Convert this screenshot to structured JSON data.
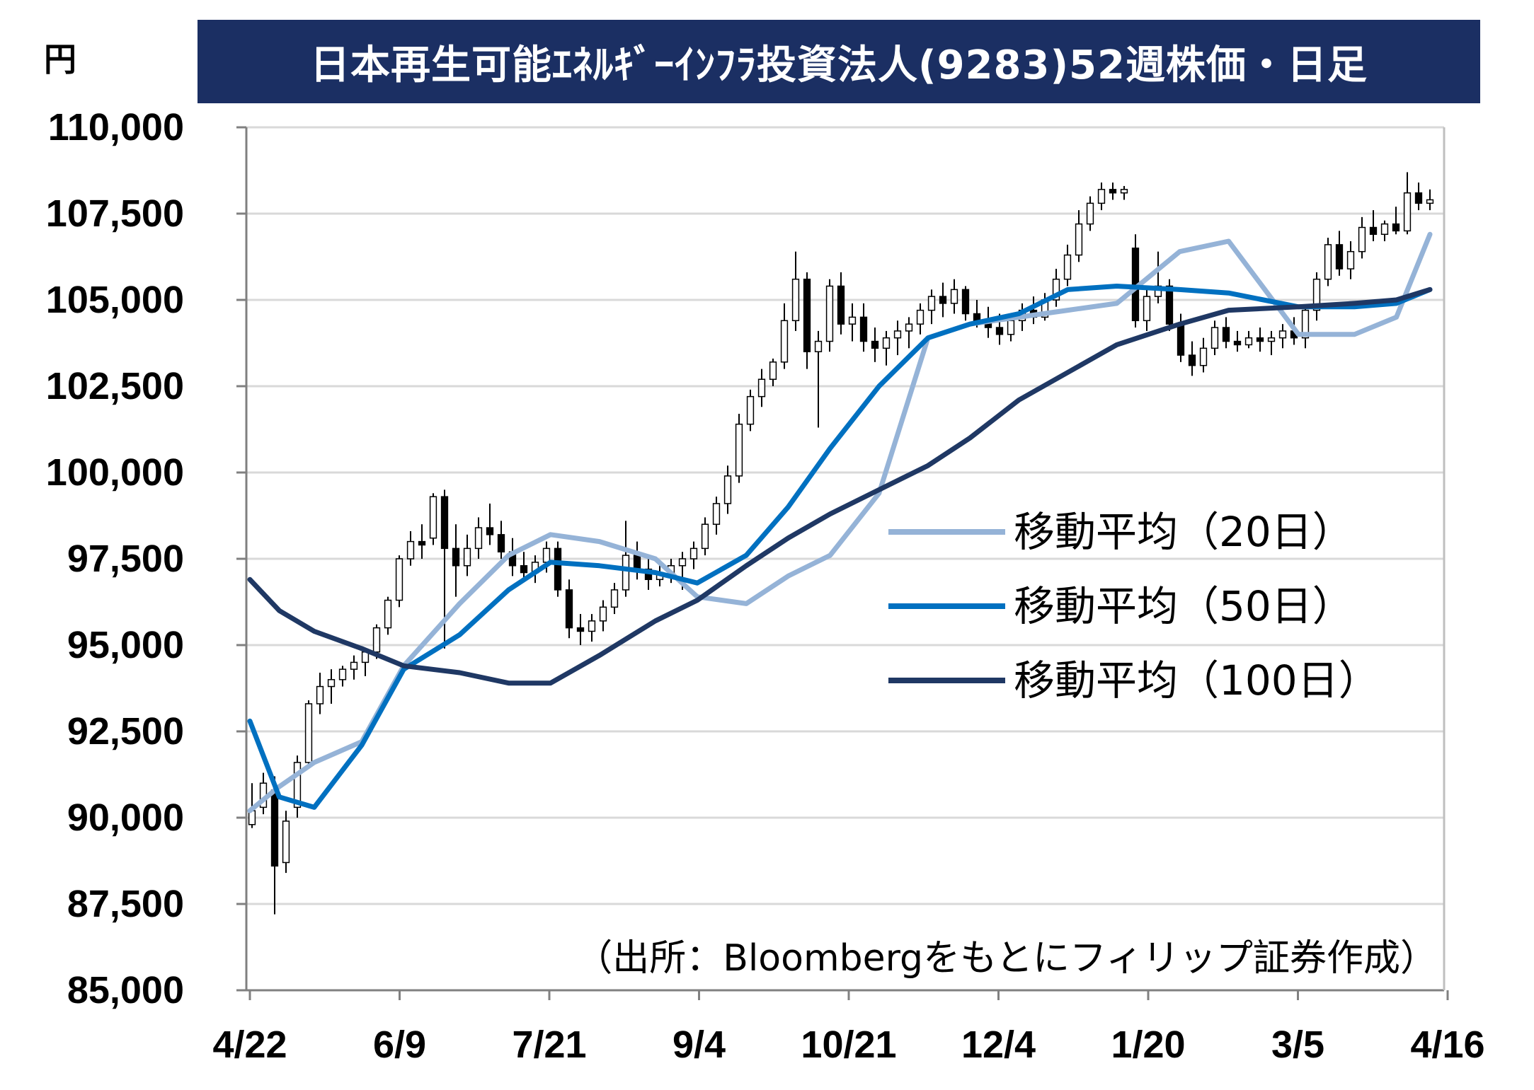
{
  "chart_data": {
    "type": "candlestick",
    "title": "日本再生可能ｴﾈﾙｷﾞｰｲﾝﾌﾗ投資法人(9283)52週株価・日足",
    "ylabel": "円",
    "ylim": [
      85000,
      110000
    ],
    "yticks": [
      "110,000",
      "107,500",
      "105,000",
      "102,500",
      "100,000",
      "97,500",
      "95,000",
      "92,500",
      "90,000",
      "87,500",
      "85,000"
    ],
    "ytick_values": [
      110000,
      107500,
      105000,
      102500,
      100000,
      97500,
      95000,
      92500,
      90000,
      87500,
      85000
    ],
    "xticks": [
      "4/22",
      "6/9",
      "7/21",
      "9/4",
      "10/21",
      "12/4",
      "1/20",
      "3/5",
      "4/16"
    ],
    "grid": true,
    "source": "（出所：Bloombergをもとにフィリップ証券作成）",
    "series": [
      {
        "name": "移動平均（20日）",
        "color": "#95b3d7",
        "values": [
          90200,
          90900,
          91600,
          92200,
          94400,
          96200,
          97600,
          98200,
          98000,
          97500,
          96400,
          96200,
          97000,
          97600,
          99400,
          103900,
          104300,
          104500,
          104700,
          104900,
          106400,
          106700,
          104000,
          104000,
          104500,
          106900
        ]
      },
      {
        "name": "移動平均（50日）",
        "color": "#0070c0",
        "values": [
          92800,
          90600,
          90300,
          92100,
          94300,
          95300,
          96600,
          97400,
          97300,
          97100,
          96800,
          97600,
          99000,
          100700,
          102500,
          103900,
          104300,
          104600,
          105300,
          105400,
          105300,
          105200,
          104800,
          104800,
          104900,
          105300
        ]
      },
      {
        "name": "移動平均（100日）",
        "color": "#1f3864",
        "values": [
          96900,
          96000,
          95400,
          94900,
          94400,
          94200,
          93900,
          93900,
          94700,
          95700,
          96300,
          97300,
          98100,
          98800,
          99500,
          100200,
          101000,
          102100,
          102900,
          103700,
          104300,
          104700,
          104800,
          104900,
          105000,
          105300
        ]
      }
    ],
    "ma_x": [
      0,
      0.42,
      0.92,
      1.6,
      2.2,
      3.0,
      3.7,
      4.3,
      5.0,
      5.8,
      6.4,
      7.1,
      7.7,
      8.3,
      9.0,
      9.7,
      10.3,
      11.0,
      11.7,
      12.4,
      13.3,
      14.0,
      15.0,
      15.8,
      16.4,
      16.88
    ],
    "candles": [
      {
        "o": 89800,
        "h": 91000,
        "l": 89700,
        "c": 90200
      },
      {
        "o": 90300,
        "h": 91300,
        "l": 90100,
        "c": 91000
      },
      {
        "o": 90800,
        "h": 91200,
        "l": 87200,
        "c": 88600
      },
      {
        "o": 88700,
        "h": 90200,
        "l": 88400,
        "c": 89900
      },
      {
        "o": 90300,
        "h": 91800,
        "l": 90000,
        "c": 91600
      },
      {
        "o": 91600,
        "h": 93400,
        "l": 91500,
        "c": 93300
      },
      {
        "o": 93300,
        "h": 94200,
        "l": 93000,
        "c": 93800
      },
      {
        "o": 93800,
        "h": 94300,
        "l": 93300,
        "c": 94000
      },
      {
        "o": 94000,
        "h": 94400,
        "l": 93800,
        "c": 94300
      },
      {
        "o": 94300,
        "h": 94700,
        "l": 94000,
        "c": 94500
      },
      {
        "o": 94500,
        "h": 94900,
        "l": 94100,
        "c": 94800
      },
      {
        "o": 94800,
        "h": 95600,
        "l": 94600,
        "c": 95500
      },
      {
        "o": 95500,
        "h": 96400,
        "l": 95300,
        "c": 96300
      },
      {
        "o": 96300,
        "h": 97600,
        "l": 96100,
        "c": 97500
      },
      {
        "o": 97500,
        "h": 98300,
        "l": 97300,
        "c": 98000
      },
      {
        "o": 98000,
        "h": 98500,
        "l": 97500,
        "c": 97900
      },
      {
        "o": 98100,
        "h": 99400,
        "l": 97900,
        "c": 99300
      },
      {
        "o": 99300,
        "h": 99500,
        "l": 94900,
        "c": 97800
      },
      {
        "o": 97800,
        "h": 98500,
        "l": 96400,
        "c": 97300
      },
      {
        "o": 97300,
        "h": 98200,
        "l": 97000,
        "c": 97800
      },
      {
        "o": 97800,
        "h": 98700,
        "l": 97500,
        "c": 98400
      },
      {
        "o": 98400,
        "h": 99100,
        "l": 97900,
        "c": 98200
      },
      {
        "o": 98200,
        "h": 98600,
        "l": 97500,
        "c": 97700
      },
      {
        "o": 97700,
        "h": 98100,
        "l": 97000,
        "c": 97300
      },
      {
        "o": 97300,
        "h": 97700,
        "l": 96900,
        "c": 97100
      },
      {
        "o": 97100,
        "h": 97600,
        "l": 96800,
        "c": 97400
      },
      {
        "o": 97400,
        "h": 98000,
        "l": 97100,
        "c": 97800
      },
      {
        "o": 97800,
        "h": 98000,
        "l": 96400,
        "c": 96600
      },
      {
        "o": 96600,
        "h": 96900,
        "l": 95200,
        "c": 95500
      },
      {
        "o": 95500,
        "h": 95900,
        "l": 95000,
        "c": 95400
      },
      {
        "o": 95400,
        "h": 95900,
        "l": 95100,
        "c": 95700
      },
      {
        "o": 95700,
        "h": 96300,
        "l": 95400,
        "c": 96100
      },
      {
        "o": 96100,
        "h": 96800,
        "l": 95900,
        "c": 96600
      },
      {
        "o": 96600,
        "h": 98600,
        "l": 96400,
        "c": 97600
      },
      {
        "o": 97600,
        "h": 98000,
        "l": 96900,
        "c": 97200
      },
      {
        "o": 97200,
        "h": 97500,
        "l": 96600,
        "c": 96900
      },
      {
        "o": 96900,
        "h": 97400,
        "l": 96700,
        "c": 97100
      },
      {
        "o": 97100,
        "h": 97500,
        "l": 96800,
        "c": 97300
      },
      {
        "o": 97300,
        "h": 97700,
        "l": 96600,
        "c": 97500
      },
      {
        "o": 97500,
        "h": 98000,
        "l": 97200,
        "c": 97800
      },
      {
        "o": 97800,
        "h": 98700,
        "l": 97600,
        "c": 98500
      },
      {
        "o": 98500,
        "h": 99300,
        "l": 98200,
        "c": 99100
      },
      {
        "o": 99100,
        "h": 100200,
        "l": 98800,
        "c": 99900
      },
      {
        "o": 99900,
        "h": 101700,
        "l": 99700,
        "c": 101400
      },
      {
        "o": 101400,
        "h": 102400,
        "l": 101200,
        "c": 102200
      },
      {
        "o": 102200,
        "h": 103000,
        "l": 101900,
        "c": 102700
      },
      {
        "o": 102700,
        "h": 103300,
        "l": 102500,
        "c": 103200
      },
      {
        "o": 103200,
        "h": 104900,
        "l": 103000,
        "c": 104400
      },
      {
        "o": 104400,
        "h": 106400,
        "l": 104100,
        "c": 105600
      },
      {
        "o": 105600,
        "h": 105800,
        "l": 103000,
        "c": 103500
      },
      {
        "o": 103500,
        "h": 104100,
        "l": 101300,
        "c": 103800
      },
      {
        "o": 103800,
        "h": 105600,
        "l": 103500,
        "c": 105400
      },
      {
        "o": 105400,
        "h": 105800,
        "l": 104000,
        "c": 104300
      },
      {
        "o": 104300,
        "h": 104900,
        "l": 103800,
        "c": 104500
      },
      {
        "o": 104500,
        "h": 104900,
        "l": 103500,
        "c": 103800
      },
      {
        "o": 103800,
        "h": 104200,
        "l": 103200,
        "c": 103600
      },
      {
        "o": 103600,
        "h": 104100,
        "l": 103100,
        "c": 103900
      },
      {
        "o": 103900,
        "h": 104400,
        "l": 103400,
        "c": 104100
      },
      {
        "o": 104100,
        "h": 104500,
        "l": 103600,
        "c": 104300
      },
      {
        "o": 104300,
        "h": 104900,
        "l": 104000,
        "c": 104700
      },
      {
        "o": 104700,
        "h": 105300,
        "l": 104300,
        "c": 105100
      },
      {
        "o": 105100,
        "h": 105500,
        "l": 104500,
        "c": 104900
      },
      {
        "o": 104900,
        "h": 105600,
        "l": 104600,
        "c": 105300
      },
      {
        "o": 105300,
        "h": 105400,
        "l": 104400,
        "c": 104600
      },
      {
        "o": 104600,
        "h": 105000,
        "l": 104200,
        "c": 104400
      },
      {
        "o": 104400,
        "h": 104800,
        "l": 103900,
        "c": 104200
      },
      {
        "o": 104200,
        "h": 104600,
        "l": 103700,
        "c": 104000
      },
      {
        "o": 104000,
        "h": 104600,
        "l": 103800,
        "c": 104400
      },
      {
        "o": 104400,
        "h": 104900,
        "l": 104100,
        "c": 104700
      },
      {
        "o": 104700,
        "h": 105100,
        "l": 104300,
        "c": 104500
      },
      {
        "o": 104500,
        "h": 105200,
        "l": 104400,
        "c": 105000
      },
      {
        "o": 105000,
        "h": 105900,
        "l": 104800,
        "c": 105600
      },
      {
        "o": 105600,
        "h": 106600,
        "l": 105400,
        "c": 106300
      },
      {
        "o": 106300,
        "h": 107600,
        "l": 106100,
        "c": 107200
      },
      {
        "o": 107200,
        "h": 108000,
        "l": 107000,
        "c": 107800
      },
      {
        "o": 107800,
        "h": 108400,
        "l": 107600,
        "c": 108200
      },
      {
        "o": 108200,
        "h": 108400,
        "l": 107900,
        "c": 108100
      },
      {
        "o": 108100,
        "h": 108300,
        "l": 107900,
        "c": 108200
      },
      {
        "o": 106500,
        "h": 106900,
        "l": 104200,
        "c": 104400
      },
      {
        "o": 104400,
        "h": 105300,
        "l": 104100,
        "c": 105100
      },
      {
        "o": 105100,
        "h": 106400,
        "l": 104900,
        "c": 105400
      },
      {
        "o": 105400,
        "h": 105600,
        "l": 104100,
        "c": 104300
      },
      {
        "o": 104300,
        "h": 104600,
        "l": 103200,
        "c": 103400
      },
      {
        "o": 103400,
        "h": 103800,
        "l": 102800,
        "c": 103100
      },
      {
        "o": 103100,
        "h": 103900,
        "l": 102900,
        "c": 103600
      },
      {
        "o": 103600,
        "h": 104400,
        "l": 103400,
        "c": 104200
      },
      {
        "o": 104200,
        "h": 104500,
        "l": 103600,
        "c": 103800
      },
      {
        "o": 103800,
        "h": 104100,
        "l": 103500,
        "c": 103700
      },
      {
        "o": 103700,
        "h": 104100,
        "l": 103600,
        "c": 103900
      },
      {
        "o": 103900,
        "h": 104200,
        "l": 103500,
        "c": 103800
      },
      {
        "o": 103800,
        "h": 104100,
        "l": 103400,
        "c": 103900
      },
      {
        "o": 103900,
        "h": 104300,
        "l": 103600,
        "c": 104100
      },
      {
        "o": 104100,
        "h": 104500,
        "l": 103700,
        "c": 103900
      },
      {
        "o": 103900,
        "h": 104800,
        "l": 103600,
        "c": 104700
      },
      {
        "o": 104700,
        "h": 105800,
        "l": 104400,
        "c": 105600
      },
      {
        "o": 105600,
        "h": 106800,
        "l": 105400,
        "c": 106600
      },
      {
        "o": 106600,
        "h": 107000,
        "l": 105700,
        "c": 105900
      },
      {
        "o": 105900,
        "h": 106700,
        "l": 105600,
        "c": 106400
      },
      {
        "o": 106400,
        "h": 107400,
        "l": 106200,
        "c": 107100
      },
      {
        "o": 107100,
        "h": 107600,
        "l": 106700,
        "c": 106900
      },
      {
        "o": 106900,
        "h": 107300,
        "l": 106700,
        "c": 107200
      },
      {
        "o": 107200,
        "h": 107700,
        "l": 106900,
        "c": 107000
      },
      {
        "o": 107000,
        "h": 108700,
        "l": 106900,
        "c": 108100
      },
      {
        "o": 108100,
        "h": 108400,
        "l": 107600,
        "c": 107800
      },
      {
        "o": 107800,
        "h": 108200,
        "l": 107600,
        "c": 107900
      }
    ]
  }
}
